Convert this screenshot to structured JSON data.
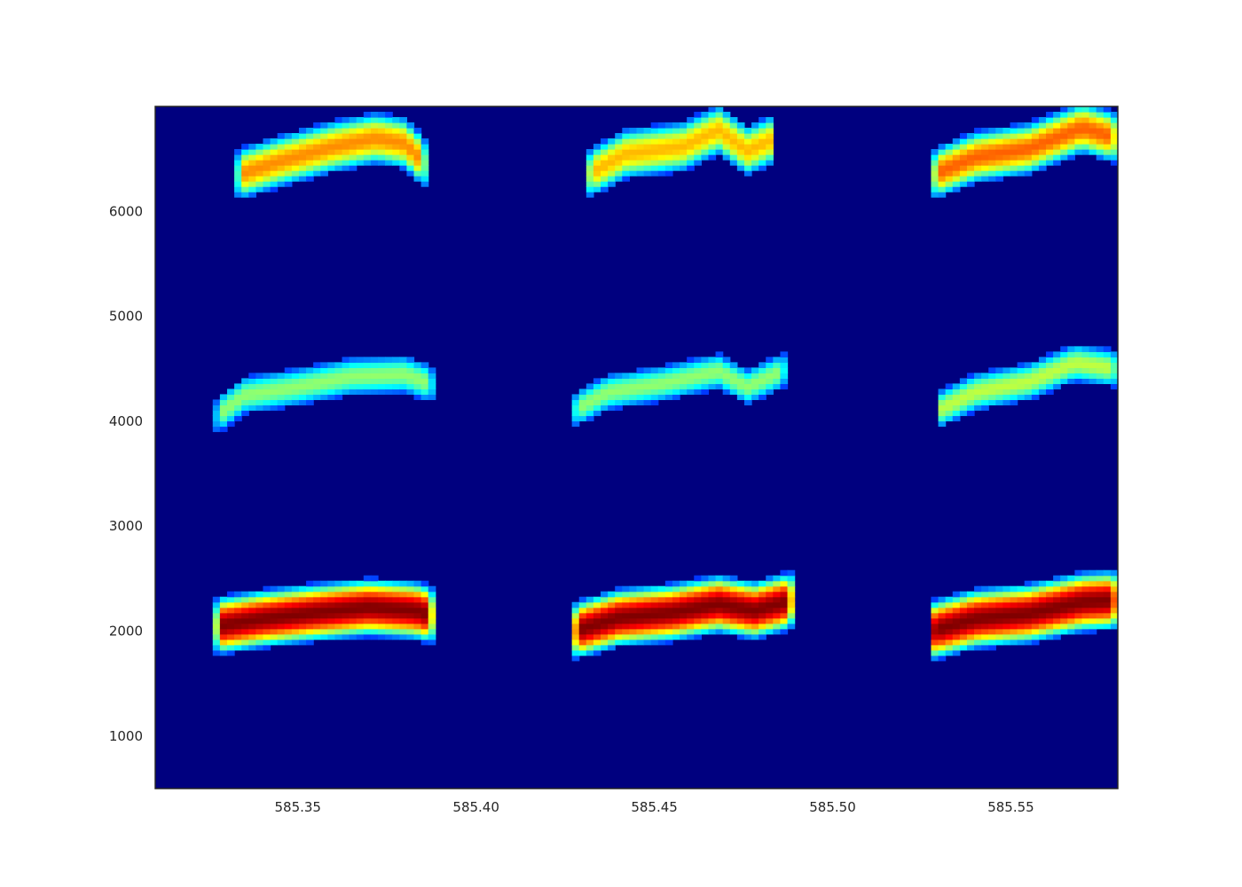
{
  "chart_data": {
    "type": "heatmap",
    "title": "",
    "xlabel": "",
    "ylabel": "",
    "colormap": "jet",
    "background_color": "#00007f",
    "xlim": [
      585.31,
      585.58
    ],
    "ylim": [
      500,
      7000
    ],
    "grid": false,
    "legend": "none",
    "x_ticks": [
      {
        "value": 585.35,
        "label": "585.35"
      },
      {
        "value": 585.4,
        "label": "585.40"
      },
      {
        "value": 585.45,
        "label": "585.45"
      },
      {
        "value": 585.5,
        "label": "585.50"
      },
      {
        "value": 585.55,
        "label": "585.55"
      }
    ],
    "y_ticks": [
      {
        "value": 1000,
        "label": "1000"
      },
      {
        "value": 2000,
        "label": "2000"
      },
      {
        "value": 3000,
        "label": "3000"
      },
      {
        "value": 4000,
        "label": "4000"
      },
      {
        "value": 5000,
        "label": "5000"
      },
      {
        "value": 6000,
        "label": "6000"
      }
    ],
    "bands": [
      {
        "x_start": 585.327,
        "x_end": 585.388,
        "center": [
          [
            585.327,
            2050
          ],
          [
            585.34,
            2120
          ],
          [
            585.355,
            2180
          ],
          [
            585.37,
            2230
          ],
          [
            585.383,
            2200
          ],
          [
            585.388,
            2150
          ]
        ],
        "half_width": 300,
        "peak": 1.0
      },
      {
        "x_start": 585.327,
        "x_end": 585.388,
        "center": [
          [
            585.327,
            4050
          ],
          [
            585.335,
            4250
          ],
          [
            585.35,
            4330
          ],
          [
            585.365,
            4430
          ],
          [
            585.38,
            4450
          ],
          [
            585.388,
            4350
          ]
        ],
        "half_width": 200,
        "peak": 0.45
      },
      {
        "x_start": 585.333,
        "x_end": 585.386,
        "center": [
          [
            585.333,
            6350
          ],
          [
            585.345,
            6480
          ],
          [
            585.36,
            6620
          ],
          [
            585.372,
            6700
          ],
          [
            585.38,
            6650
          ],
          [
            585.386,
            6450
          ]
        ],
        "half_width": 270,
        "peak": 0.7
      },
      {
        "x_start": 585.427,
        "x_end": 585.489,
        "center": [
          [
            585.427,
            2000
          ],
          [
            585.44,
            2130
          ],
          [
            585.455,
            2180
          ],
          [
            585.468,
            2260
          ],
          [
            585.478,
            2200
          ],
          [
            585.489,
            2300
          ]
        ],
        "half_width": 300,
        "peak": 1.0
      },
      {
        "x_start": 585.427,
        "x_end": 585.487,
        "center": [
          [
            585.427,
            4100
          ],
          [
            585.437,
            4280
          ],
          [
            585.452,
            4360
          ],
          [
            585.468,
            4480
          ],
          [
            585.476,
            4330
          ],
          [
            585.487,
            4500
          ]
        ],
        "half_width": 190,
        "peak": 0.45
      },
      {
        "x_start": 585.431,
        "x_end": 585.484,
        "center": [
          [
            585.431,
            6350
          ],
          [
            585.442,
            6550
          ],
          [
            585.458,
            6620
          ],
          [
            585.468,
            6780
          ],
          [
            585.476,
            6580
          ],
          [
            585.484,
            6700
          ]
        ],
        "half_width": 260,
        "peak": 0.65
      },
      {
        "x_start": 585.527,
        "x_end": 585.58,
        "center": [
          [
            585.527,
            2000
          ],
          [
            585.54,
            2120
          ],
          [
            585.555,
            2170
          ],
          [
            585.57,
            2280
          ],
          [
            585.58,
            2300
          ]
        ],
        "half_width": 310,
        "peak": 1.0
      },
      {
        "x_start": 585.529,
        "x_end": 585.58,
        "center": [
          [
            585.529,
            4100
          ],
          [
            585.54,
            4280
          ],
          [
            585.555,
            4380
          ],
          [
            585.568,
            4560
          ],
          [
            585.58,
            4500
          ]
        ],
        "half_width": 200,
        "peak": 0.5
      },
      {
        "x_start": 585.528,
        "x_end": 585.58,
        "center": [
          [
            585.528,
            6350
          ],
          [
            585.54,
            6520
          ],
          [
            585.555,
            6600
          ],
          [
            585.57,
            6800
          ],
          [
            585.58,
            6700
          ]
        ],
        "half_width": 270,
        "peak": 0.75
      }
    ]
  }
}
